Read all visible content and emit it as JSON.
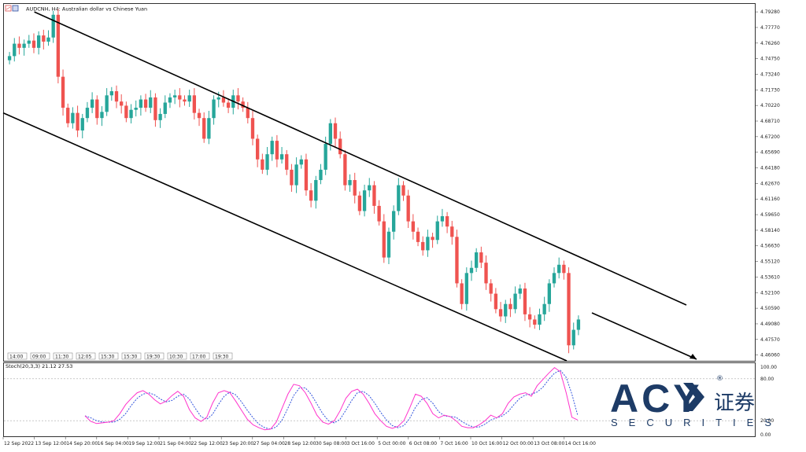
{
  "header": {
    "title": "AUDCNH, H4:  Australian dollar vs Chinese Yuan",
    "icons": [
      "chart-type-icon",
      "color-icon"
    ]
  },
  "colors": {
    "bull": "#26a69a",
    "bear": "#ef5350",
    "channel": "#000000",
    "stoch_main": "#ff33cc",
    "stoch_signal": "#3355dd",
    "level_line": "#aaaaaa",
    "brand": "#1d3b66"
  },
  "price_axis": {
    "labels": [
      "4.79280",
      "4.77770",
      "4.76260",
      "4.74750",
      "4.73240",
      "4.71730",
      "4.70220",
      "4.68710",
      "4.67200",
      "4.65690",
      "4.64180",
      "4.62670",
      "4.61160",
      "4.59650",
      "4.58140",
      "4.56630",
      "4.55120",
      "4.53610",
      "4.52100",
      "4.50590",
      "4.49080",
      "4.47570",
      "4.46060"
    ],
    "ylim": [
      4.455,
      4.8005
    ]
  },
  "time_axis": {
    "labels": [
      "12 Sep 2022",
      "13 Sep 12:00",
      "14 Sep 20:00",
      "16 Sep 04:00",
      "19 Sep 12:00",
      "21 Sep 04:00",
      "22 Sep 12:00",
      "23 Sep 20:00",
      "27 Sep 04:00",
      "28 Sep 12:00",
      "30 Sep 08:00",
      "3 Oct 16:00",
      "5 Oct 00:00",
      "6 Oct 08:00",
      "7 Oct 16:00",
      "10 Oct 16:00",
      "12 Oct 00:00",
      "13 Oct 08:00",
      "14 Oct 16:00"
    ]
  },
  "session_labels": [
    "14:00",
    "09:00",
    "11:30",
    "12:05",
    "15:30",
    "15:30",
    "19:30",
    "10:30",
    "17:00",
    "19:30"
  ],
  "stoch": {
    "label": "Stoch(20,3,3) 21.12 27.53",
    "axis_labels": [
      "100.00",
      "80.00",
      "20.00",
      "0.00"
    ],
    "levels": [
      80,
      20
    ]
  },
  "brand": {
    "name": "ACY",
    "cn": "证券",
    "sub": "SECURITIES",
    "reg": "®"
  },
  "chart_data": {
    "type": "candlestick",
    "symbol": "AUDCNH",
    "timeframe": "H4",
    "description": "Australian dollar vs Chinese Yuan",
    "ylim": [
      4.455,
      4.8005
    ],
    "closes": [
      4.75,
      4.762,
      4.758,
      4.762,
      4.765,
      4.758,
      4.77,
      4.764,
      4.768,
      4.79,
      4.73,
      4.7,
      4.685,
      4.695,
      4.678,
      4.69,
      4.7,
      4.708,
      4.69,
      4.696,
      4.712,
      4.716,
      4.706,
      4.702,
      4.69,
      4.698,
      4.7,
      4.708,
      4.7,
      4.71,
      4.688,
      4.694,
      4.705,
      4.71,
      4.712,
      4.708,
      4.706,
      4.712,
      4.695,
      4.69,
      4.67,
      4.69,
      4.708,
      4.71,
      4.705,
      4.7,
      4.712,
      4.706,
      4.7,
      4.69,
      4.67,
      4.65,
      4.64,
      4.655,
      4.668,
      4.65,
      4.655,
      4.64,
      4.625,
      4.645,
      4.65,
      4.62,
      4.61,
      4.63,
      4.64,
      4.665,
      4.685,
      4.67,
      4.655,
      4.625,
      4.63,
      4.615,
      4.6,
      4.62,
      4.625,
      4.605,
      4.59,
      4.555,
      4.58,
      4.6,
      4.625,
      4.615,
      4.59,
      4.58,
      4.57,
      4.562,
      4.575,
      4.572,
      4.59,
      4.595,
      4.585,
      4.575,
      4.53,
      4.51,
      4.54,
      4.545,
      4.56,
      4.55,
      4.53,
      4.52,
      4.505,
      4.498,
      4.51,
      4.505,
      4.52,
      4.525,
      4.5,
      4.495,
      4.49,
      4.5,
      4.51,
      4.53,
      4.54,
      4.548,
      4.54,
      4.47,
      4.485,
      4.495
    ],
    "stoch_main": [
      27,
      19,
      16,
      17,
      18,
      20,
      30,
      43,
      52,
      60,
      63,
      58,
      50,
      44,
      48,
      56,
      62,
      55,
      36,
      24,
      19,
      25,
      45,
      60,
      63,
      60,
      48,
      35,
      22,
      14,
      10,
      7,
      8,
      18,
      38,
      58,
      72,
      70,
      60,
      45,
      28,
      18,
      15,
      20,
      34,
      52,
      62,
      65,
      58,
      45,
      30,
      20,
      12,
      9,
      12,
      20,
      38,
      58,
      55,
      45,
      30,
      24,
      28,
      26,
      20,
      12,
      10,
      10,
      14,
      20,
      28,
      24,
      30,
      45,
      54,
      58,
      60,
      55,
      70,
      79,
      88,
      96,
      90,
      60,
      25,
      21
    ],
    "stoch_signal": [
      27,
      24,
      20,
      18,
      18,
      18,
      22,
      30,
      42,
      52,
      58,
      60,
      57,
      51,
      47,
      49,
      55,
      58,
      51,
      38,
      26,
      22,
      29,
      43,
      55,
      61,
      57,
      47,
      35,
      24,
      15,
      10,
      8,
      11,
      21,
      38,
      56,
      67,
      67,
      58,
      44,
      30,
      20,
      17,
      22,
      35,
      49,
      60,
      62,
      56,
      45,
      32,
      21,
      13,
      10,
      13,
      23,
      39,
      50,
      53,
      45,
      33,
      27,
      26,
      25,
      19,
      14,
      11,
      11,
      15,
      21,
      24,
      27,
      33,
      43,
      52,
      57,
      58,
      61,
      68,
      79,
      88,
      92,
      82,
      58,
      27.5
    ],
    "channel_lines": [
      {
        "name": "upper",
        "from": {
          "x": "13 Sep 12:00",
          "y": 4.7928
        },
        "to": {
          "x": "14 Oct 16:00",
          "y": 4.505
        }
      },
      {
        "name": "lower",
        "from": {
          "x": "12 Sep 2022",
          "y": 4.695
        },
        "to": {
          "x": "14 Oct 16:00",
          "y": 4.459
        }
      }
    ],
    "projection_arrow": {
      "from_price": 4.497,
      "to_price": 4.459
    }
  }
}
